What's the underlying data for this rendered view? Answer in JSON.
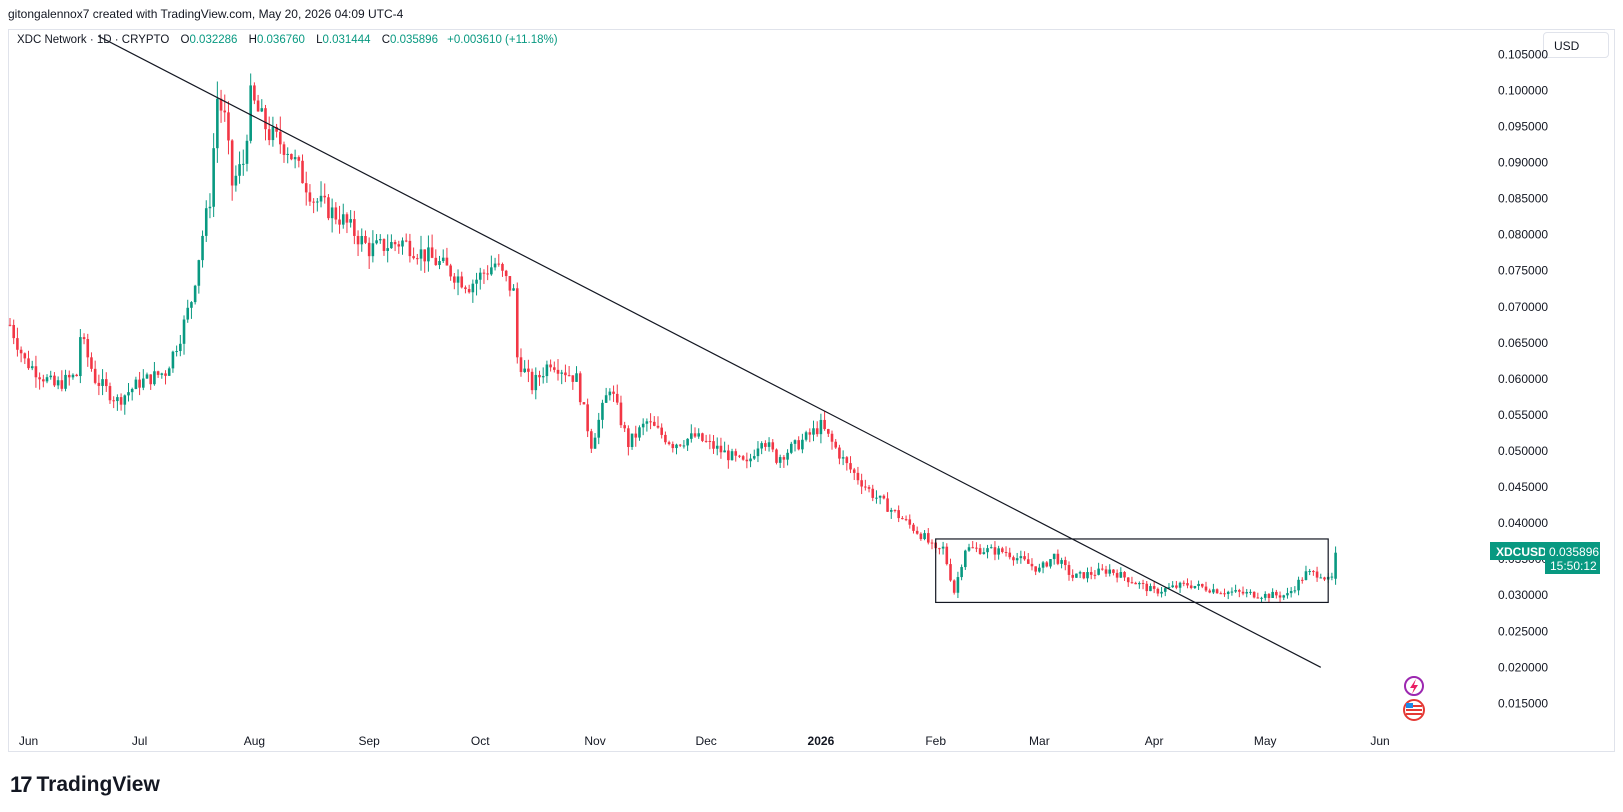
{
  "header": {
    "attribution": "gitongalennox7 created with TradingView.com, May 20, 2026 04:09 UTC-4"
  },
  "legend": {
    "symbol": "XDC Network · 1D · CRYPTO",
    "o_label": "O",
    "o_value": "0.032286",
    "h_label": "H",
    "h_value": "0.036760",
    "l_label": "L",
    "l_value": "0.031444",
    "c_label": "C",
    "c_value": "0.035896",
    "change": "+0.003610 (+11.18%)"
  },
  "currency_button": "USD",
  "price_tag": {
    "ticker": "XDCUSD",
    "price": "0.035896",
    "countdown": "15:50:12"
  },
  "footer": {
    "brand": "TradingView"
  },
  "colors": {
    "up": "#089981",
    "down": "#f23645",
    "line": "#131722"
  },
  "chart_data": {
    "type": "candlestick",
    "title": "XDC Network · 1D · CRYPTO",
    "ylim": [
      0.012,
      0.107
    ],
    "y_ticks": [
      "0.105000",
      "0.100000",
      "0.095000",
      "0.090000",
      "0.085000",
      "0.080000",
      "0.075000",
      "0.070000",
      "0.065000",
      "0.060000",
      "0.055000",
      "0.050000",
      "0.045000",
      "0.040000",
      "0.035000",
      "0.030000",
      "0.025000",
      "0.020000",
      "0.015000"
    ],
    "x_ticks": [
      {
        "label": "Jun",
        "date": "2025-06-01"
      },
      {
        "label": "Jul",
        "date": "2025-07-01"
      },
      {
        "label": "Aug",
        "date": "2025-08-01"
      },
      {
        "label": "Sep",
        "date": "2025-09-01"
      },
      {
        "label": "Oct",
        "date": "2025-10-01"
      },
      {
        "label": "Nov",
        "date": "2025-11-01"
      },
      {
        "label": "Dec",
        "date": "2025-12-01"
      },
      {
        "label": "2026",
        "date": "2026-01-01",
        "bold": true
      },
      {
        "label": "Feb",
        "date": "2026-02-01"
      },
      {
        "label": "Mar",
        "date": "2026-03-01"
      },
      {
        "label": "Apr",
        "date": "2026-04-01"
      },
      {
        "label": "May",
        "date": "2026-05-01"
      },
      {
        "label": "Jun",
        "date": "2026-06-01"
      }
    ],
    "x_range": [
      "2025-05-27",
      "2026-06-28"
    ],
    "close_anchors": [
      [
        "2025-05-27",
        0.0675
      ],
      [
        "2025-05-31",
        0.0625
      ],
      [
        "2025-06-08",
        0.059
      ],
      [
        "2025-06-14",
        0.0605
      ],
      [
        "2025-06-15",
        0.066
      ],
      [
        "2025-06-19",
        0.06
      ],
      [
        "2025-06-25",
        0.057
      ],
      [
        "2025-07-01",
        0.0595
      ],
      [
        "2025-07-08",
        0.061
      ],
      [
        "2025-07-12",
        0.066
      ],
      [
        "2025-07-15",
        0.071
      ],
      [
        "2025-07-18",
        0.08
      ],
      [
        "2025-07-20",
        0.085
      ],
      [
        "2025-07-22",
        0.099
      ],
      [
        "2025-07-24",
        0.096
      ],
      [
        "2025-07-26",
        0.087
      ],
      [
        "2025-07-29",
        0.09
      ],
      [
        "2025-07-31",
        0.099
      ],
      [
        "2025-08-05",
        0.094
      ],
      [
        "2025-08-10",
        0.092
      ],
      [
        "2025-08-17",
        0.085
      ],
      [
        "2025-08-25",
        0.082
      ],
      [
        "2025-09-01",
        0.078
      ],
      [
        "2025-09-10",
        0.079
      ],
      [
        "2025-09-20",
        0.076
      ],
      [
        "2025-09-28",
        0.073
      ],
      [
        "2025-10-05",
        0.076
      ],
      [
        "2025-10-10",
        0.072
      ],
      [
        "2025-10-11",
        0.063
      ],
      [
        "2025-10-15",
        0.059
      ],
      [
        "2025-10-20",
        0.0625
      ],
      [
        "2025-10-27",
        0.06
      ],
      [
        "2025-10-31",
        0.051
      ],
      [
        "2025-11-05",
        0.059
      ],
      [
        "2025-11-10",
        0.051
      ],
      [
        "2025-11-15",
        0.054
      ],
      [
        "2025-11-22",
        0.051
      ],
      [
        "2025-11-28",
        0.052
      ],
      [
        "2025-12-05",
        0.05
      ],
      [
        "2025-12-12",
        0.048
      ],
      [
        "2025-12-16",
        0.052
      ],
      [
        "2025-12-20",
        0.049
      ],
      [
        "2025-12-26",
        0.051
      ],
      [
        "2026-01-01",
        0.0535
      ],
      [
        "2026-01-08",
        0.048
      ],
      [
        "2026-01-15",
        0.044
      ],
      [
        "2026-01-22",
        0.041
      ],
      [
        "2026-01-29",
        0.038
      ],
      [
        "2026-02-01",
        0.036
      ],
      [
        "2026-02-03",
        0.0365
      ],
      [
        "2026-02-06",
        0.0305
      ],
      [
        "2026-02-09",
        0.0365
      ],
      [
        "2026-02-20",
        0.036
      ],
      [
        "2026-03-01",
        0.0335
      ],
      [
        "2026-03-05",
        0.0355
      ],
      [
        "2026-03-10",
        0.0325
      ],
      [
        "2026-03-20",
        0.0335
      ],
      [
        "2026-04-01",
        0.0305
      ],
      [
        "2026-04-10",
        0.0315
      ],
      [
        "2026-04-20",
        0.0305
      ],
      [
        "2026-05-01",
        0.03
      ],
      [
        "2026-05-07",
        0.03
      ],
      [
        "2026-05-12",
        0.033
      ],
      [
        "2026-05-16",
        0.033
      ],
      [
        "2026-05-18",
        0.032
      ],
      [
        "2026-05-19",
        0.0323
      ],
      [
        "2026-05-20",
        0.035896
      ]
    ],
    "last_candle": {
      "date": "2026-05-20",
      "open": 0.032286,
      "high": 0.03676,
      "low": 0.031444,
      "close": 0.035896
    },
    "trendline": {
      "start": {
        "date": "2025-06-20",
        "price": 0.1075
      },
      "end": {
        "date": "2026-05-16",
        "price": 0.02
      }
    },
    "range_box": {
      "start": "2026-02-01",
      "end": "2026-05-18",
      "top": 0.0378,
      "bottom": 0.029
    }
  }
}
